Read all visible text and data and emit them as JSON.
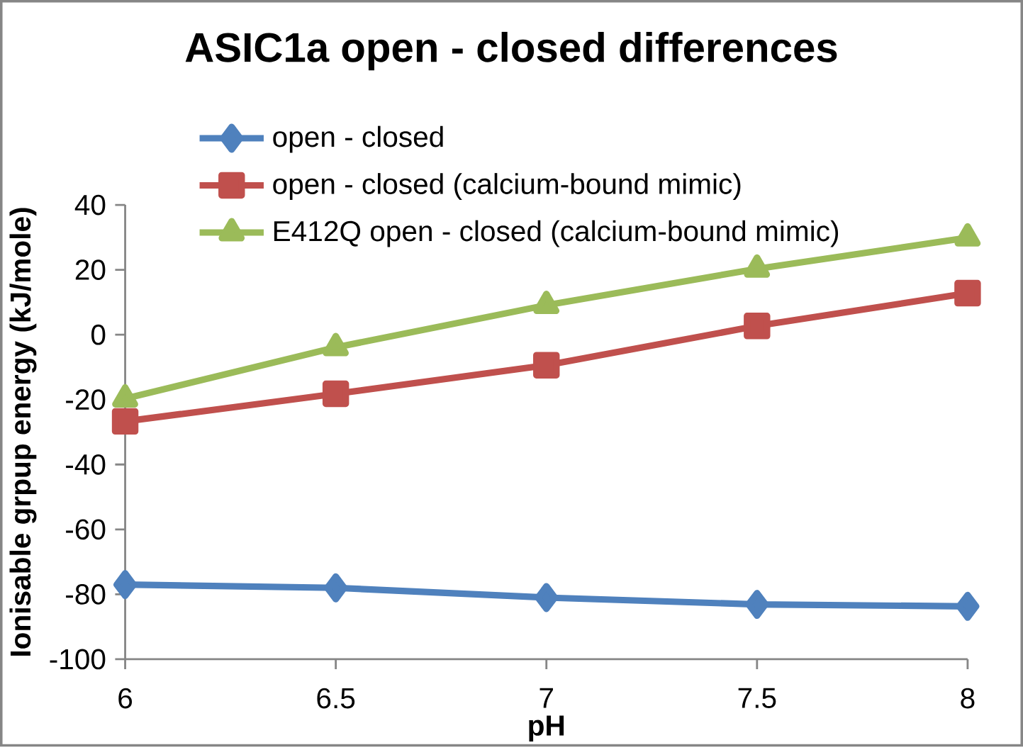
{
  "chart_data": {
    "type": "line",
    "title": "ASIC1a open - closed differences",
    "xlabel": "pH",
    "ylabel": "Ionisable grpup energy (kJ/mole)",
    "x": [
      6,
      6.5,
      7,
      7.5,
      8
    ],
    "series": [
      {
        "name": "open - closed",
        "color": "#4f81bd",
        "marker": "diamond",
        "values": [
          -77.0,
          -78.0,
          -81.0,
          -83.1,
          -83.7
        ]
      },
      {
        "name": "open - closed (calcium-bound mimic)",
        "color": "#c0504d",
        "marker": "square",
        "values": [
          -26.7,
          -18.2,
          -9.4,
          2.7,
          12.8
        ]
      },
      {
        "name": "E412Q open - closed (calcium-bound mimic)",
        "color": "#9bbb59",
        "marker": "triangle",
        "values": [
          -19.7,
          -3.9,
          9.1,
          20.3,
          29.9
        ]
      }
    ],
    "xlim": [
      6,
      8
    ],
    "ylim": [
      -100,
      40
    ],
    "xticks": [
      6,
      6.5,
      7,
      7.5,
      8
    ],
    "yticks": [
      -100,
      -80,
      -60,
      -40,
      -20,
      0,
      20,
      40
    ],
    "legend": "top left"
  }
}
